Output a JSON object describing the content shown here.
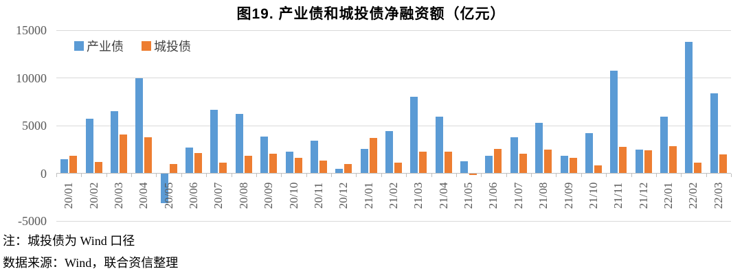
{
  "title": "图19.  产业债和城投债净融资额（亿元）",
  "legend": {
    "series1": "产业债",
    "series2": "城投债"
  },
  "notes": {
    "line1": "注：城投债为 Wind 口径",
    "line2": "数据来源：Wind，联合资信整理"
  },
  "colors": {
    "industrial": "#5B9BD5",
    "urban": "#ED7D31",
    "gridline": "#D9D9D9",
    "axis": "#BFBFBF",
    "axis_text": "#595959"
  },
  "chart_data": {
    "type": "bar",
    "title": "图19.  产业债和城投债净融资额（亿元）",
    "categories": [
      "20/01",
      "20/02",
      "20/03",
      "20/04",
      "20/05",
      "20/06",
      "20/07",
      "20/08",
      "20/09",
      "20/10",
      "20/11",
      "20/12",
      "21/01",
      "21/02",
      "21/03",
      "21/04",
      "21/05",
      "21/06",
      "21/07",
      "21/08",
      "21/09",
      "21/10",
      "21/11",
      "21/12",
      "22/01",
      "22/02",
      "22/03"
    ],
    "series": [
      {
        "name": "产业债",
        "color_key": "industrial",
        "values": [
          1450,
          5700,
          6500,
          9950,
          -3150,
          2700,
          6650,
          6200,
          3850,
          2300,
          3400,
          450,
          2550,
          4400,
          8000,
          5950,
          1250,
          1850,
          3800,
          5300,
          1800,
          4200,
          10750,
          2500,
          5900,
          13750,
          8400
        ]
      },
      {
        "name": "城投债",
        "color_key": "urban",
        "values": [
          1850,
          1200,
          4050,
          3800,
          950,
          2150,
          1100,
          1800,
          2050,
          1650,
          1300,
          1000,
          3700,
          1150,
          2250,
          2300,
          -150,
          2550,
          2050,
          2450,
          1600,
          850,
          2800,
          2400,
          2850,
          1150,
          1950
        ]
      }
    ],
    "xlabel": "",
    "ylabel": "",
    "ylim": [
      -5000,
      15000
    ],
    "y_ticks": [
      15000,
      10000,
      5000,
      0,
      -5000
    ],
    "grid": true,
    "legend_position": "top-left"
  }
}
